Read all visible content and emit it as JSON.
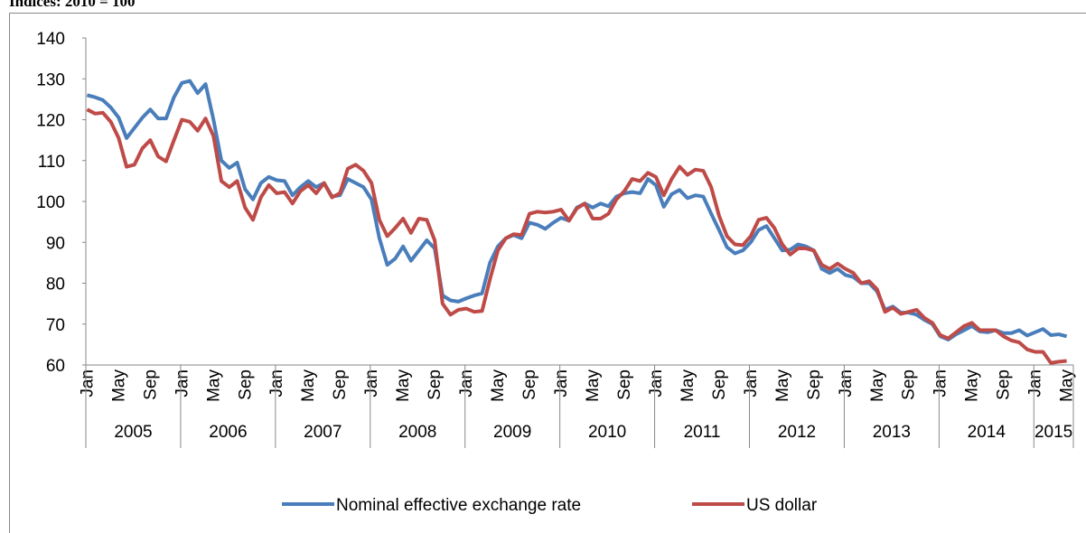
{
  "chart_data": {
    "type": "line",
    "subtitle": "Indices: 2010 = 100",
    "categories": [
      "Jan",
      null,
      null,
      null,
      "May",
      null,
      null,
      null,
      "Sep",
      null,
      null,
      null,
      "Jan",
      null,
      null,
      null,
      "May",
      null,
      null,
      null,
      "Sep",
      null,
      null,
      null,
      "Jan",
      null,
      null,
      null,
      "May",
      null,
      null,
      null,
      "Sep",
      null,
      null,
      null,
      "Jan",
      null,
      null,
      null,
      "May",
      null,
      null,
      null,
      "Sep",
      null,
      null,
      null,
      "Jan",
      null,
      null,
      null,
      "May",
      null,
      null,
      null,
      "Sep",
      null,
      null,
      null,
      "Jan",
      null,
      null,
      null,
      "May",
      null,
      null,
      null,
      "Sep",
      null,
      null,
      null,
      "Jan",
      null,
      null,
      null,
      "May",
      null,
      null,
      null,
      "Sep",
      null,
      null,
      null,
      "Jan",
      null,
      null,
      null,
      "May",
      null,
      null,
      null,
      "Sep",
      null,
      null,
      null,
      "Jan",
      null,
      null,
      null,
      "May",
      null,
      null,
      null,
      "Sep",
      null,
      null,
      null,
      "Jan",
      null,
      null,
      null,
      "May",
      null,
      null,
      null,
      "Sep",
      null,
      null,
      null,
      "Jan",
      null,
      null,
      null,
      "May"
    ],
    "year_labels": [
      "2005",
      "2006",
      "2007",
      "2008",
      "2009",
      "2010",
      "2011",
      "2012",
      "2013",
      "2014",
      "2015"
    ],
    "series": [
      {
        "name": "Nominal effective exchange rate",
        "color": "#4a7ebb",
        "values": [
          126,
          125.5,
          124.8,
          123,
          120.5,
          115.5,
          118,
          120.5,
          122.5,
          120.3,
          120.3,
          125.5,
          129,
          129.5,
          126.5,
          128.7,
          120,
          110,
          108.2,
          109.5,
          103,
          100.5,
          104.5,
          106,
          105.2,
          105,
          101.5,
          103.5,
          105,
          103.5,
          104.5,
          101.2,
          101.5,
          105.5,
          104.5,
          103.5,
          100.5,
          91,
          84.5,
          86,
          89,
          85.5,
          88,
          90.5,
          88.5,
          77,
          75.8,
          75.5,
          76.3,
          77,
          77.5,
          85,
          89,
          91,
          91.8,
          91,
          94.8,
          94.3,
          93.3,
          94.8,
          96,
          95.3,
          98.5,
          99.5,
          98.5,
          99.5,
          98.8,
          101.2,
          102,
          102.3,
          102,
          105.5,
          104,
          98.7,
          101.8,
          102.8,
          100.8,
          101.5,
          101.2,
          97,
          93,
          88.8,
          87.3,
          88,
          90,
          93,
          94,
          91,
          88,
          88.2,
          89.5,
          89,
          88,
          83.5,
          82.5,
          83.5,
          82,
          81.5,
          80,
          80,
          78,
          73.5,
          74.3,
          72.8,
          72.8,
          72.3,
          71,
          70,
          67,
          66.2,
          67.5,
          68.5,
          69.5,
          68.2,
          68,
          68.5,
          67.8,
          67.8,
          68.5,
          67.2,
          68,
          68.8,
          67.3,
          67.5,
          67
        ]
      },
      {
        "name": "US dollar",
        "color": "#be4b48",
        "values": [
          122.5,
          121.5,
          121.7,
          119.5,
          115.5,
          108.5,
          109,
          113,
          115,
          111,
          109.8,
          115,
          120,
          119.5,
          117.3,
          120.3,
          116,
          105,
          103.5,
          105,
          98.5,
          95.5,
          101,
          104,
          102,
          102.3,
          99.5,
          102.5,
          104,
          102,
          104.5,
          101,
          102,
          108,
          109,
          107.5,
          104.5,
          95.5,
          91.5,
          93.5,
          95.8,
          92.3,
          95.8,
          95.5,
          90.5,
          75,
          72.3,
          73.5,
          73.8,
          73,
          73.2,
          81,
          88,
          91,
          92,
          91.8,
          97,
          97.5,
          97.3,
          97.5,
          98,
          95.3,
          98.3,
          99.5,
          95.8,
          95.8,
          97,
          100.5,
          102.5,
          105.5,
          105,
          107,
          106,
          101.5,
          105.5,
          108.5,
          106.5,
          107.8,
          107.5,
          103.5,
          96.5,
          91.5,
          89.5,
          89.3,
          91.5,
          95.5,
          96,
          93.5,
          89.5,
          87,
          88.5,
          88.5,
          88,
          84.5,
          83.5,
          84.8,
          83.5,
          82.5,
          80,
          80.5,
          78.5,
          73,
          74,
          72.5,
          73,
          73.5,
          71.5,
          70.3,
          67.3,
          66.5,
          68,
          69.5,
          70.3,
          68.5,
          68.5,
          68.5,
          67,
          66,
          65.5,
          63.8,
          63.2,
          63.2,
          60.5,
          60.8,
          61
        ]
      }
    ],
    "ylim": [
      60,
      140
    ],
    "yticks": [
      60,
      70,
      80,
      90,
      100,
      110,
      120,
      130,
      140
    ],
    "grid": false,
    "legend": "bottom"
  }
}
